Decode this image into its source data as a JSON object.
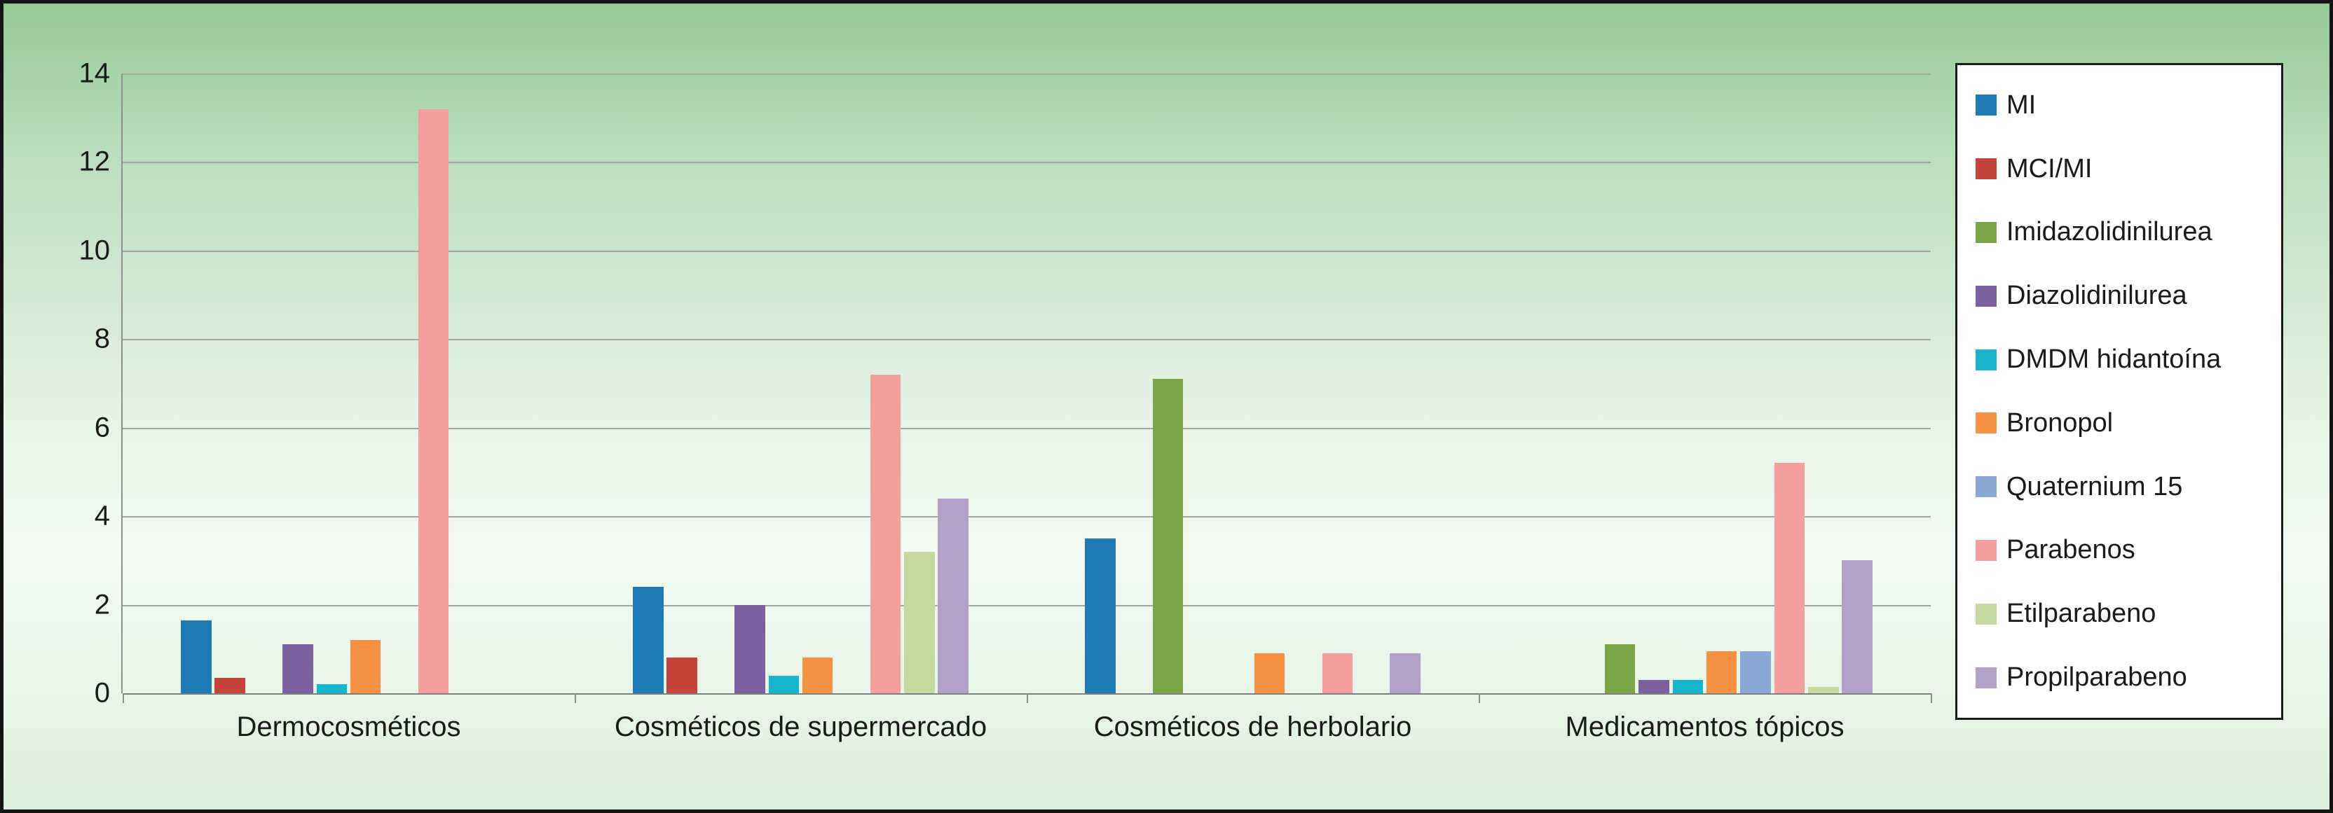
{
  "chart_data": {
    "type": "bar",
    "title": "",
    "xlabel": "",
    "ylabel": "",
    "ylim": [
      0,
      14
    ],
    "yticks": [
      0,
      2,
      4,
      6,
      8,
      10,
      12,
      14
    ],
    "grid": true,
    "legend_position": "right",
    "categories": [
      "Dermocosméticos",
      "Cosméticos de supermercado",
      "Cosméticos de herbolario",
      "Medicamentos tópicos"
    ],
    "series": [
      {
        "name": "MI",
        "color": "#1F7BB6",
        "values": [
          1.65,
          2.4,
          3.5,
          0
        ]
      },
      {
        "name": "MCI/MI",
        "color": "#C4443C",
        "values": [
          0.35,
          0.8,
          0,
          0
        ]
      },
      {
        "name": "Imidazolidinilurea",
        "color": "#7BA647",
        "values": [
          0,
          0,
          7.1,
          1.1
        ]
      },
      {
        "name": "Diazolidinilurea",
        "color": "#7D60A0",
        "values": [
          1.1,
          2.0,
          0,
          0.3
        ]
      },
      {
        "name": "DMDM hidantoína",
        "color": "#17B6CE",
        "values": [
          0.2,
          0.4,
          0,
          0.3
        ]
      },
      {
        "name": "Bronopol",
        "color": "#F79243",
        "values": [
          1.2,
          0.8,
          0.9,
          0.95
        ]
      },
      {
        "name": "Quaternium 15",
        "color": "#8AA9D6",
        "values": [
          0,
          0,
          0,
          0.95
        ]
      },
      {
        "name": "Parabenos",
        "color": "#F59E9E",
        "values": [
          13.2,
          7.2,
          0.9,
          5.2
        ]
      },
      {
        "name": "Etilparabeno",
        "color": "#C6D9A0",
        "values": [
          0,
          3.2,
          0,
          0.15
        ]
      },
      {
        "name": "Propilparabeno",
        "color": "#B1A0C7",
        "values": [
          0,
          4.4,
          0.9,
          3.0
        ]
      }
    ]
  }
}
